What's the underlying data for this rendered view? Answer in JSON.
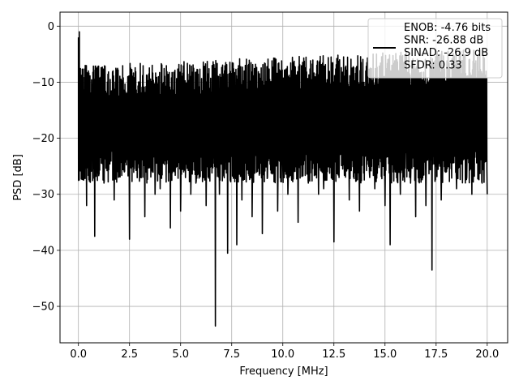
{
  "chart_data": {
    "type": "line",
    "title": "",
    "xlabel": "Frequency [MHz]",
    "ylabel": "PSD [dB]",
    "xlim": [
      -0.9,
      21.0
    ],
    "ylim": [
      -56.5,
      2.5
    ],
    "xticks": [
      0.0,
      2.5,
      5.0,
      7.5,
      10.0,
      12.5,
      15.0,
      17.5,
      20.0
    ],
    "xtick_labels": [
      "0.0",
      "2.5",
      "5.0",
      "7.5",
      "10.0",
      "12.5",
      "15.0",
      "17.5",
      "20.0"
    ],
    "yticks": [
      0,
      -10,
      -20,
      -30,
      -40,
      -50
    ],
    "ytick_labels": [
      "0",
      "−10",
      "−20",
      "−30",
      "−40",
      "−50"
    ],
    "grid": true,
    "legend_position": "top-right",
    "legend": [
      "ENOB: -4.76 bits",
      "SNR: -26.88 dB",
      "SINAD: -26.9 dB",
      "SFDR: 0.33"
    ],
    "line_color": "#000000",
    "series": [
      {
        "x": [
          0.0,
          0.05,
          0.1,
          0.2,
          0.3,
          0.4,
          0.5,
          0.6,
          0.8,
          0.9,
          1.0,
          1.25,
          1.5,
          1.75,
          2.0,
          2.25,
          2.5,
          2.75,
          3.0,
          3.25,
          3.5,
          3.75,
          4.0,
          4.25,
          4.5,
          4.75,
          5.0,
          5.25,
          5.5,
          5.75,
          6.0,
          6.25,
          6.5,
          6.7,
          6.9,
          7.1,
          7.3,
          7.55,
          7.75,
          8.0,
          8.25,
          8.5,
          8.75,
          9.0,
          9.25,
          9.5,
          9.75,
          10.0,
          10.25,
          10.5,
          10.75,
          11.0,
          11.25,
          11.5,
          11.75,
          12.0,
          12.25,
          12.5,
          12.75,
          13.0,
          13.25,
          13.5,
          13.75,
          14.0,
          14.25,
          14.5,
          14.75,
          15.0,
          15.25,
          15.5,
          15.75,
          16.0,
          16.25,
          16.5,
          16.75,
          17.0,
          17.3,
          17.5,
          17.75,
          18.0,
          18.25,
          18.5,
          18.75,
          19.0,
          19.25,
          19.5,
          19.75,
          20.0
        ],
        "y": [
          -2,
          -1,
          -15,
          -22,
          -27,
          -32,
          -26,
          -12,
          -37.5,
          -15,
          -18,
          -28,
          -20,
          -31,
          -18,
          -26,
          -38,
          -22,
          -25,
          -34,
          -20,
          -30,
          -29,
          -24,
          -36,
          -20,
          -33,
          -22,
          -30,
          -28,
          -21,
          -32,
          -25,
          -53.5,
          -30,
          -24,
          -40.5,
          -26,
          -39,
          -31,
          -24,
          -34,
          -20,
          -37,
          -27,
          -22,
          -33,
          -25,
          -30,
          -19,
          -35,
          -22,
          -28,
          -24,
          -30,
          -29,
          -21,
          -38.5,
          -27,
          -24,
          -31,
          -22,
          -33,
          -20,
          -27,
          -29,
          -23,
          -32,
          -39,
          -26,
          -30,
          -22,
          -28,
          -34,
          -26,
          -32,
          -43.5,
          -22,
          -31,
          -26,
          -24,
          -29,
          -21,
          -27,
          -30,
          -23,
          -28,
          -30
        ]
      }
    ]
  }
}
